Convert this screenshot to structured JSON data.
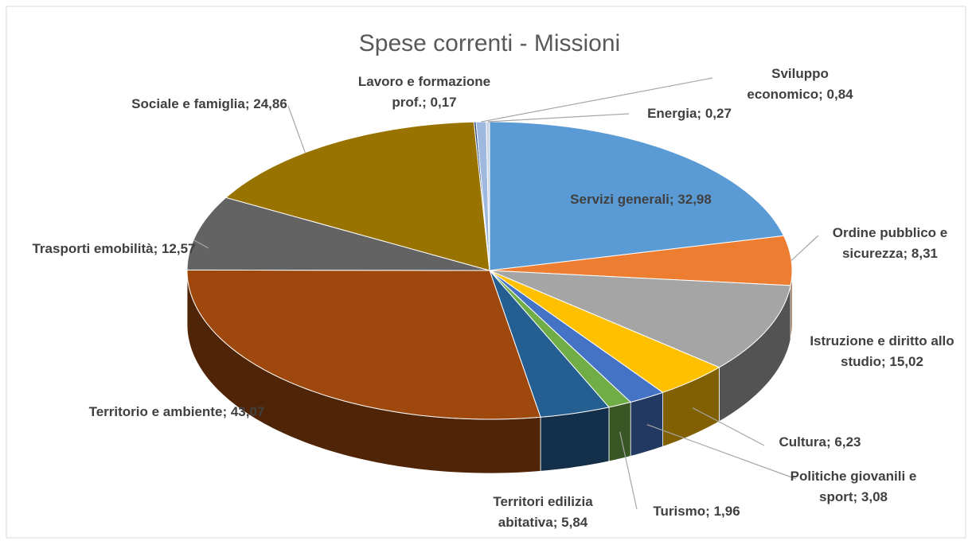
{
  "chart_data": {
    "type": "pie",
    "title": "Spese correnti - Missioni",
    "label_separator": ";",
    "categories": [
      "Servizi generali",
      "Ordine pubblico e sicurezza",
      "Istruzione e diritto allo studio",
      "Cultura",
      "Politiche giovanili e sport",
      "Turismo",
      "Territori edilizia abitativa",
      "Territorio e ambiente",
      "Trasporti emobilità",
      "Sociale e famiglia",
      "Lavoro e formazione prof.",
      "Sviluppo economico",
      "Energia"
    ],
    "values": [
      32.98,
      8.31,
      15.02,
      6.23,
      3.08,
      1.96,
      5.84,
      43.07,
      12.57,
      24.86,
      0.17,
      0.84,
      0.27
    ],
    "value_labels": [
      "32,98",
      "8,31",
      "15,02",
      "6,23",
      "3,08",
      "1,96",
      "5,84",
      "43,07",
      "12,57",
      "24,86",
      "0,17",
      "0,84",
      "0,27"
    ],
    "colors": [
      "#5b9bd5",
      "#ed7d31",
      "#a5a5a5",
      "#ffc000",
      "#4472c4",
      "#70ad47",
      "#255e91",
      "#9e480e",
      "#636363",
      "#997300",
      "#264478",
      "#9fb8dd",
      "#c8d3e6"
    ]
  }
}
